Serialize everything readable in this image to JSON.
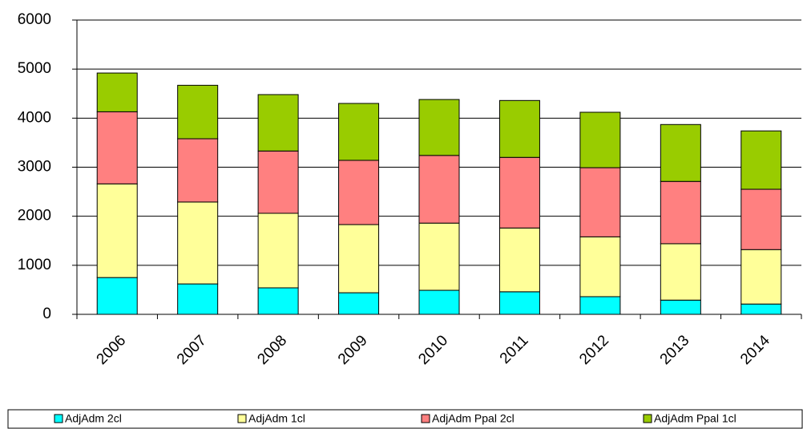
{
  "chart_data": {
    "type": "stacked_bar",
    "categories": [
      "2006",
      "2007",
      "2008",
      "2009",
      "2010",
      "2011",
      "2012",
      "2013",
      "2014"
    ],
    "series": [
      {
        "name": "AdjAdm 2cl",
        "color": "#00ffff",
        "values": [
          750,
          620,
          540,
          440,
          490,
          460,
          360,
          290,
          210
        ]
      },
      {
        "name": "AdjAdm 1cl",
        "color": "#ffff99",
        "values": [
          1910,
          1670,
          1520,
          1390,
          1370,
          1300,
          1220,
          1150,
          1110
        ]
      },
      {
        "name": "AdjAdm Ppal 2cl",
        "color": "#ff8080",
        "values": [
          1470,
          1290,
          1270,
          1310,
          1380,
          1440,
          1410,
          1270,
          1230
        ]
      },
      {
        "name": "AdjAdm Ppal 1cl",
        "color": "#99cc00",
        "values": [
          790,
          1090,
          1150,
          1160,
          1140,
          1160,
          1130,
          1160,
          1190
        ]
      }
    ],
    "ylim": [
      0,
      6000
    ],
    "yticks": [
      0,
      1000,
      2000,
      3000,
      4000,
      5000,
      6000
    ],
    "grid": true,
    "legend": "bottom"
  }
}
